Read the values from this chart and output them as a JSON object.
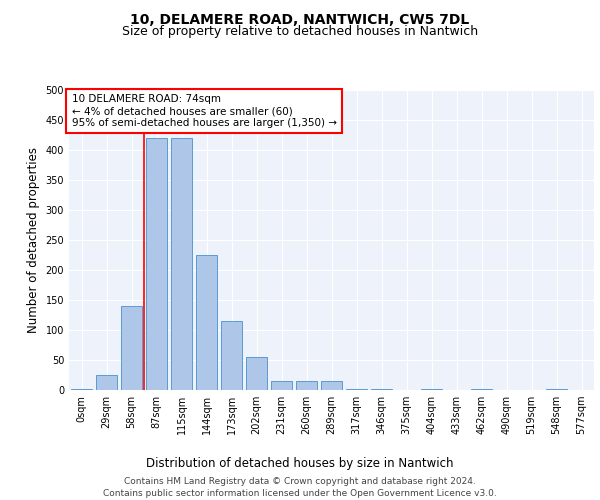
{
  "title_line1": "10, DELAMERE ROAD, NANTWICH, CW5 7DL",
  "title_line2": "Size of property relative to detached houses in Nantwich",
  "xlabel": "Distribution of detached houses by size in Nantwich",
  "ylabel": "Number of detached properties",
  "footer_line1": "Contains HM Land Registry data © Crown copyright and database right 2024.",
  "footer_line2": "Contains public sector information licensed under the Open Government Licence v3.0.",
  "bar_labels": [
    "0sqm",
    "29sqm",
    "58sqm",
    "87sqm",
    "115sqm",
    "144sqm",
    "173sqm",
    "202sqm",
    "231sqm",
    "260sqm",
    "289sqm",
    "317sqm",
    "346sqm",
    "375sqm",
    "404sqm",
    "433sqm",
    "462sqm",
    "490sqm",
    "519sqm",
    "548sqm",
    "577sqm"
  ],
  "bar_values": [
    1,
    25,
    140,
    420,
    420,
    225,
    115,
    55,
    15,
    15,
    15,
    2,
    1,
    0,
    1,
    0,
    1,
    0,
    0,
    1,
    0
  ],
  "bar_color": "#aec6e8",
  "bar_edge_color": "#5b9bd5",
  "annotation_box_text": "10 DELAMERE ROAD: 74sqm\n← 4% of detached houses are smaller (60)\n95% of semi-detached houses are larger (1,350) →",
  "annotation_box_color": "white",
  "annotation_box_edge_color": "red",
  "vline_x": 2.5,
  "vline_color": "red",
  "ylim": [
    0,
    500
  ],
  "yticks": [
    0,
    50,
    100,
    150,
    200,
    250,
    300,
    350,
    400,
    450,
    500
  ],
  "background_color": "#edf2fb",
  "grid_color": "white",
  "title_fontsize": 10,
  "subtitle_fontsize": 9,
  "axis_label_fontsize": 8.5,
  "tick_fontsize": 7,
  "footer_fontsize": 6.5,
  "annotation_fontsize": 7.5
}
